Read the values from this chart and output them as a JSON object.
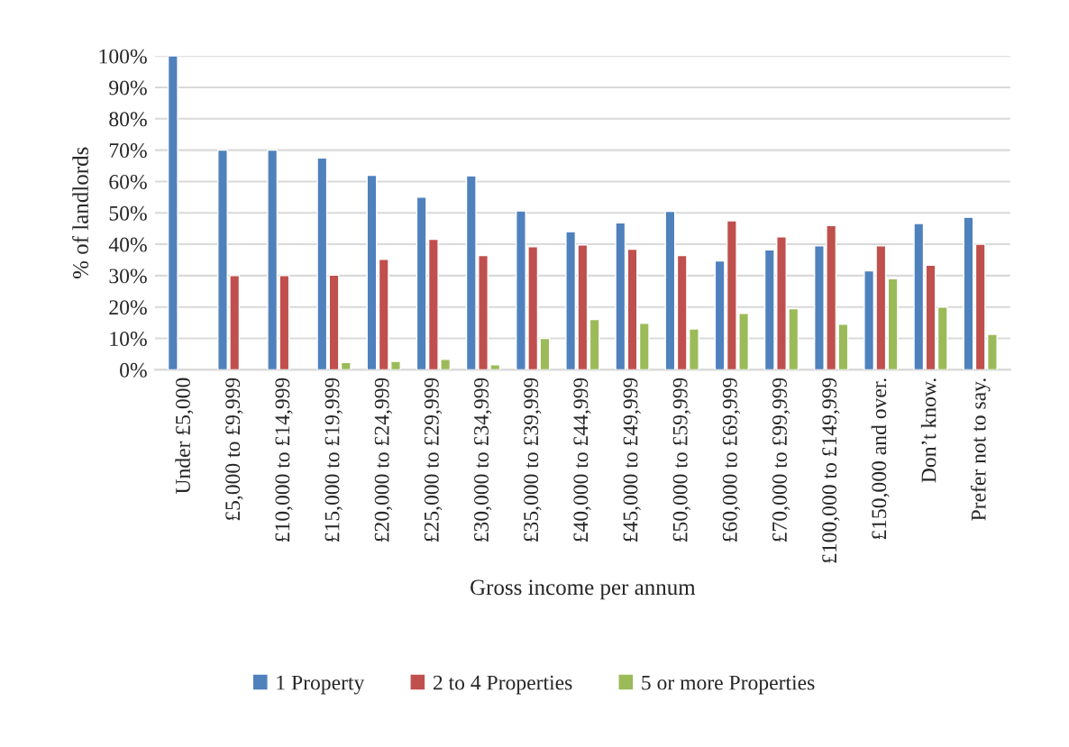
{
  "chart_data": {
    "type": "bar",
    "xlabel": "Gross income per annum",
    "ylabel": "% of landlords",
    "categories": [
      "Under £5,000",
      "£5,000 to £9,999",
      "£10,000 to £14,999",
      "£15,000 to £19,999",
      "£20,000 to £24,999",
      "£25,000 to £29,999",
      "£30,000 to £34,999",
      "£35,000 to £39,999",
      "£40,000 to £44,999",
      "£45,000 to £49,999",
      "£50,000 to £59,999",
      "£60,000 to £69,999",
      "£70,000 to £99,999",
      "£100,000 to £149,999",
      "£150,000 and over.",
      "Don’t know.",
      "Prefer not to say."
    ],
    "series": [
      {
        "name": "1 Property",
        "color": "#4f81bd",
        "values": [
          100,
          70,
          70,
          67.5,
          62,
          55,
          61.8,
          50.6,
          44,
          46.8,
          50.5,
          34.7,
          38.2,
          39.5,
          31.5,
          46.6,
          48.6
        ]
      },
      {
        "name": "2 to 4 Properties",
        "color": "#c0504d",
        "values": [
          null,
          30,
          30,
          30.2,
          35.2,
          41.6,
          36.4,
          39.2,
          39.8,
          38.4,
          36.4,
          47.5,
          42.4,
          46,
          39.5,
          33.3,
          40
        ]
      },
      {
        "name": "5 or more Properties",
        "color": "#9bbb59",
        "values": [
          null,
          null,
          null,
          2.3,
          2.7,
          3.3,
          1.6,
          10,
          16,
          14.8,
          13,
          18,
          19.5,
          14.5,
          29,
          20,
          11.3
        ]
      }
    ],
    "ylim": [
      0,
      100
    ],
    "yticks": [
      {
        "value": 0,
        "label": "0%"
      },
      {
        "value": 10,
        "label": "10%"
      },
      {
        "value": 20,
        "label": "20%"
      },
      {
        "value": 30,
        "label": "30%"
      },
      {
        "value": 40,
        "label": "40%"
      },
      {
        "value": 50,
        "label": "50%"
      },
      {
        "value": 60,
        "label": "60%"
      },
      {
        "value": 70,
        "label": "70%"
      },
      {
        "value": 80,
        "label": "80%"
      },
      {
        "value": 90,
        "label": "90%"
      },
      {
        "value": 100,
        "label": "100%"
      }
    ],
    "grid": "y",
    "legend": "bottom"
  }
}
